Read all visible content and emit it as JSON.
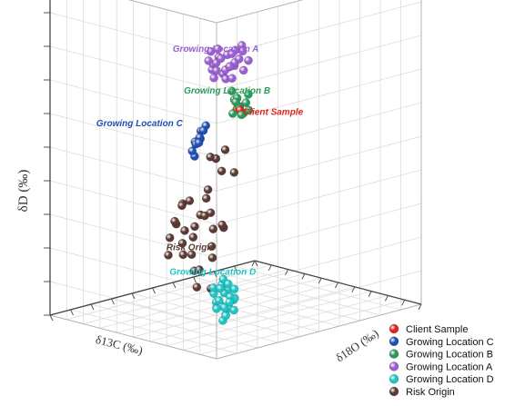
{
  "chart_data": {
    "type": "scatter",
    "title": "",
    "axes": {
      "x_label": "δ13C (‰)",
      "y_label": "δ18O (‰)",
      "z_label": "δD (‰)"
    },
    "grid": true,
    "legend_position": "bottom-right",
    "series": [
      {
        "name": "Client Sample",
        "color": "#e2231a",
        "points": [
          [
            0.37,
            0.4,
            0.63
          ],
          [
            0.35,
            0.4,
            0.63
          ]
        ]
      },
      {
        "name": "Growing Location C",
        "color": "#1f4fb3",
        "points": [
          [
            0.2,
            0.08,
            0.62
          ],
          [
            0.19,
            0.09,
            0.64
          ],
          [
            0.22,
            0.1,
            0.61
          ],
          [
            0.21,
            0.07,
            0.6
          ],
          [
            0.23,
            0.11,
            0.63
          ],
          [
            0.18,
            0.06,
            0.61
          ],
          [
            0.22,
            0.06,
            0.58
          ],
          [
            0.24,
            0.09,
            0.6
          ],
          [
            0.2,
            0.11,
            0.65
          ],
          [
            0.23,
            0.08,
            0.56
          ]
        ]
      },
      {
        "name": "Growing Location B",
        "color": "#2a9a5a",
        "points": [
          [
            0.36,
            0.4,
            0.64
          ],
          [
            0.38,
            0.41,
            0.66
          ],
          [
            0.34,
            0.42,
            0.65
          ],
          [
            0.37,
            0.38,
            0.62
          ],
          [
            0.39,
            0.43,
            0.63
          ],
          [
            0.35,
            0.44,
            0.67
          ],
          [
            0.4,
            0.4,
            0.68
          ],
          [
            0.33,
            0.39,
            0.62
          ],
          [
            0.38,
            0.44,
            0.61
          ],
          [
            0.41,
            0.42,
            0.65
          ],
          [
            0.36,
            0.45,
            0.62
          ],
          [
            0.34,
            0.37,
            0.66
          ]
        ]
      },
      {
        "name": "Growing Location A",
        "color": "#9a5fd0",
        "points": [
          [
            0.66,
            0.58,
            0.68
          ],
          [
            0.69,
            0.56,
            0.7
          ],
          [
            0.64,
            0.61,
            0.7
          ],
          [
            0.7,
            0.6,
            0.66
          ],
          [
            0.67,
            0.62,
            0.72
          ],
          [
            0.72,
            0.57,
            0.69
          ],
          [
            0.62,
            0.58,
            0.66
          ],
          [
            0.68,
            0.64,
            0.68
          ],
          [
            0.71,
            0.63,
            0.71
          ],
          [
            0.65,
            0.55,
            0.72
          ],
          [
            0.73,
            0.6,
            0.73
          ],
          [
            0.6,
            0.62,
            0.68
          ],
          [
            0.66,
            0.66,
            0.74
          ],
          [
            0.74,
            0.58,
            0.67
          ],
          [
            0.63,
            0.64,
            0.73
          ],
          [
            0.7,
            0.66,
            0.72
          ],
          [
            0.61,
            0.56,
            0.7
          ],
          [
            0.75,
            0.62,
            0.7
          ],
          [
            0.68,
            0.54,
            0.66
          ],
          [
            0.64,
            0.52,
            0.69
          ],
          [
            0.72,
            0.65,
            0.67
          ],
          [
            0.59,
            0.59,
            0.72
          ],
          [
            0.67,
            0.59,
            0.65
          ],
          [
            0.76,
            0.59,
            0.72
          ],
          [
            0.62,
            0.66,
            0.7
          ],
          [
            0.7,
            0.53,
            0.71
          ]
        ]
      },
      {
        "name": "Growing Location D",
        "color": "#1fc4c4",
        "points": [
          [
            0.1,
            0.12,
            0.12
          ],
          [
            0.12,
            0.11,
            0.14
          ],
          [
            0.09,
            0.14,
            0.15
          ],
          [
            0.13,
            0.13,
            0.12
          ],
          [
            0.11,
            0.15,
            0.17
          ],
          [
            0.08,
            0.11,
            0.1
          ],
          [
            0.14,
            0.1,
            0.16
          ],
          [
            0.1,
            0.1,
            0.18
          ],
          [
            0.12,
            0.16,
            0.11
          ],
          [
            0.15,
            0.12,
            0.13
          ],
          [
            0.09,
            0.13,
            0.19
          ],
          [
            0.13,
            0.15,
            0.09
          ],
          [
            0.07,
            0.12,
            0.14
          ],
          [
            0.11,
            0.09,
            0.12
          ],
          [
            0.14,
            0.14,
            0.18
          ],
          [
            0.1,
            0.17,
            0.14
          ],
          [
            0.12,
            0.13,
            0.2
          ],
          [
            0.08,
            0.15,
            0.11
          ],
          [
            0.15,
            0.16,
            0.15
          ],
          [
            0.11,
            0.12,
            0.08
          ],
          [
            0.13,
            0.09,
            0.18
          ],
          [
            0.09,
            0.16,
            0.17
          ],
          [
            0.16,
            0.13,
            0.11
          ],
          [
            0.12,
            0.18,
            0.13
          ]
        ]
      },
      {
        "name": "Risk Origin",
        "color": "#5a3a32",
        "points": [
          [
            0.4,
            0.35,
            0.45
          ],
          [
            0.44,
            0.4,
            0.5
          ],
          [
            0.48,
            0.36,
            0.48
          ],
          [
            0.52,
            0.42,
            0.46
          ],
          [
            0.46,
            0.46,
            0.42
          ],
          [
            0.42,
            0.3,
            0.4
          ],
          [
            0.38,
            0.28,
            0.34
          ],
          [
            0.34,
            0.26,
            0.3
          ],
          [
            0.3,
            0.22,
            0.26
          ],
          [
            0.36,
            0.32,
            0.3
          ],
          [
            0.4,
            0.36,
            0.28
          ],
          [
            0.44,
            0.3,
            0.32
          ],
          [
            0.48,
            0.34,
            0.36
          ],
          [
            0.5,
            0.3,
            0.28
          ],
          [
            0.54,
            0.36,
            0.3
          ],
          [
            0.46,
            0.26,
            0.26
          ],
          [
            0.5,
            0.24,
            0.24
          ],
          [
            0.56,
            0.3,
            0.26
          ],
          [
            0.58,
            0.34,
            0.34
          ],
          [
            0.42,
            0.22,
            0.22
          ],
          [
            0.38,
            0.2,
            0.18
          ],
          [
            0.34,
            0.18,
            0.14
          ],
          [
            0.3,
            0.16,
            0.2
          ],
          [
            0.28,
            0.2,
            0.14
          ],
          [
            0.32,
            0.24,
            0.22
          ],
          [
            0.52,
            0.26,
            0.2
          ],
          [
            0.56,
            0.22,
            0.2
          ],
          [
            0.6,
            0.26,
            0.24
          ],
          [
            0.62,
            0.3,
            0.28
          ],
          [
            0.7,
            0.4,
            0.3
          ],
          [
            0.72,
            0.42,
            0.3
          ],
          [
            0.66,
            0.34,
            0.26
          ]
        ]
      }
    ],
    "annotations": [
      {
        "text": "Growing Location A",
        "series": "Growing Location A"
      },
      {
        "text": "Growing Location B",
        "series": "Growing Location B"
      },
      {
        "text": "Client Sample",
        "series": "Client Sample"
      },
      {
        "text": "Growing Location C",
        "series": "Growing Location C"
      },
      {
        "text": "Risk Origin",
        "series": "Risk Origin"
      },
      {
        "text": "Growing Location D",
        "series": "Growing Location D"
      }
    ],
    "legend_order": [
      "Client Sample",
      "Growing Location C",
      "Growing Location B",
      "Growing Location A",
      "Growing Location D",
      "Risk Origin"
    ]
  }
}
